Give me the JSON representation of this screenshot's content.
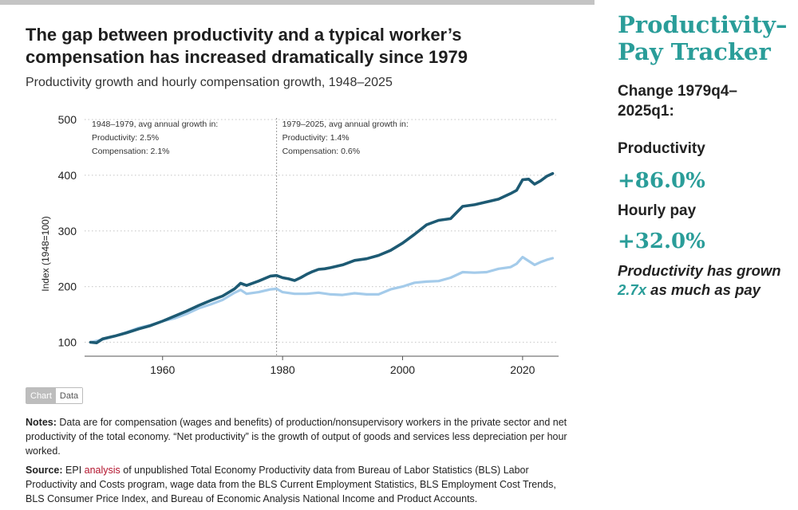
{
  "chart_title": "The gap between productivity and a typical worker’s compensation has increased dramatically since 1979",
  "chart_subtitle": "Productivity growth and hourly compensation growth, 1948–2025",
  "chart_data": {
    "type": "line",
    "title": "The gap between productivity and a typical worker’s compensation has increased dramatically since 1979",
    "subtitle": "Productivity growth and hourly compensation growth, 1948–2025",
    "xlabel": "",
    "ylabel": "Index (1948=100)",
    "xlim": [
      1947,
      2026
    ],
    "ylim": [
      75,
      500
    ],
    "x_ticks": [
      1960,
      1980,
      2000,
      2020
    ],
    "y_ticks": [
      100,
      200,
      300,
      400,
      500
    ],
    "grid": true,
    "annotations": [
      {
        "lines": [
          "1948–1979, avg annual growth in:",
          "Productivity: 2.5%",
          "Compensation: 2.1%"
        ]
      },
      {
        "lines": [
          "1979–2025, avg annual growth in:",
          "Productivity: 1.4%",
          "Compensation: 0.6%"
        ]
      }
    ],
    "reference_line_x": 1979,
    "series": [
      {
        "color": "#1d5a73",
        "points": [
          [
            1948,
            100
          ],
          [
            1949,
            99
          ],
          [
            1950,
            106
          ],
          [
            1952,
            111
          ],
          [
            1954,
            117
          ],
          [
            1956,
            124
          ],
          [
            1958,
            130
          ],
          [
            1960,
            138
          ],
          [
            1962,
            147
          ],
          [
            1964,
            156
          ],
          [
            1966,
            166
          ],
          [
            1968,
            175
          ],
          [
            1970,
            183
          ],
          [
            1972,
            196
          ],
          [
            1973,
            206
          ],
          [
            1974,
            202
          ],
          [
            1976,
            210
          ],
          [
            1978,
            219
          ],
          [
            1979,
            220
          ],
          [
            1980,
            216
          ],
          [
            1981,
            214
          ],
          [
            1982,
            211
          ],
          [
            1983,
            216
          ],
          [
            1984,
            222
          ],
          [
            1985,
            227
          ],
          [
            1986,
            231
          ],
          [
            1987,
            232
          ],
          [
            1988,
            234
          ],
          [
            1990,
            239
          ],
          [
            1992,
            247
          ],
          [
            1994,
            250
          ],
          [
            1996,
            256
          ],
          [
            1998,
            265
          ],
          [
            2000,
            278
          ],
          [
            2002,
            294
          ],
          [
            2004,
            311
          ],
          [
            2006,
            319
          ],
          [
            2008,
            322
          ],
          [
            2010,
            344
          ],
          [
            2012,
            347
          ],
          [
            2014,
            352
          ],
          [
            2016,
            357
          ],
          [
            2018,
            367
          ],
          [
            2019,
            373
          ],
          [
            2020,
            392
          ],
          [
            2021,
            393
          ],
          [
            2022,
            384
          ],
          [
            2023,
            390
          ],
          [
            2024,
            398
          ],
          [
            2025,
            403
          ]
        ]
      },
      {
        "color": "#a4cbea",
        "points": [
          [
            1948,
            100
          ],
          [
            1950,
            105
          ],
          [
            1952,
            111
          ],
          [
            1954,
            118
          ],
          [
            1956,
            126
          ],
          [
            1958,
            131
          ],
          [
            1960,
            138
          ],
          [
            1962,
            143
          ],
          [
            1964,
            151
          ],
          [
            1966,
            161
          ],
          [
            1968,
            168
          ],
          [
            1970,
            176
          ],
          [
            1972,
            189
          ],
          [
            1973,
            194
          ],
          [
            1974,
            187
          ],
          [
            1976,
            190
          ],
          [
            1978,
            195
          ],
          [
            1979,
            196
          ],
          [
            1980,
            190
          ],
          [
            1982,
            187
          ],
          [
            1984,
            187
          ],
          [
            1986,
            189
          ],
          [
            1988,
            186
          ],
          [
            1990,
            185
          ],
          [
            1992,
            188
          ],
          [
            1994,
            186
          ],
          [
            1996,
            186
          ],
          [
            1998,
            195
          ],
          [
            2000,
            200
          ],
          [
            2002,
            207
          ],
          [
            2004,
            209
          ],
          [
            2006,
            210
          ],
          [
            2008,
            216
          ],
          [
            2010,
            226
          ],
          [
            2012,
            225
          ],
          [
            2014,
            226
          ],
          [
            2016,
            232
          ],
          [
            2018,
            235
          ],
          [
            2019,
            241
          ],
          [
            2020,
            253
          ],
          [
            2021,
            246
          ],
          [
            2022,
            239
          ],
          [
            2023,
            244
          ],
          [
            2024,
            248
          ],
          [
            2025,
            251
          ]
        ]
      }
    ]
  },
  "toggle": {
    "chart_label": "Chart",
    "data_label": "Data"
  },
  "notes": {
    "label": "Notes:",
    "text": " Data are for compensation (wages and benefits) of production/nonsupervisory workers in the private sector and net productivity of the total economy. “Net productivity” is the growth of output of goods and services less depreciation per hour worked."
  },
  "source": {
    "label": "Source:",
    "text_before": " EPI ",
    "link_text": "analysis",
    "text_after": " of unpublished Total Economy Productivity data from Bureau of Labor Statistics (BLS) Labor Productivity and Costs program, wage data from the BLS Current Employment Statistics, BLS Employment Cost Trends, BLS Consumer Price Index, and Bureau of Economic Analysis National Income and Product Accounts."
  },
  "tracker": {
    "title_line1": "Productivity–",
    "title_line2": "Pay Tracker",
    "change_label": "Change 1979q4–2025q1:",
    "productivity_label": "Productivity",
    "productivity_value": "+86.0%",
    "pay_label": "Hourly pay",
    "pay_value": "+32.0%",
    "summary_before": "Productivity has grown ",
    "summary_highlight": "2.7x",
    "summary_after": " as much as pay"
  },
  "colors": {
    "accent": "#2a9d99",
    "productivity": "#1d5a73",
    "compensation": "#a4cbea",
    "link": "#b3142d"
  }
}
